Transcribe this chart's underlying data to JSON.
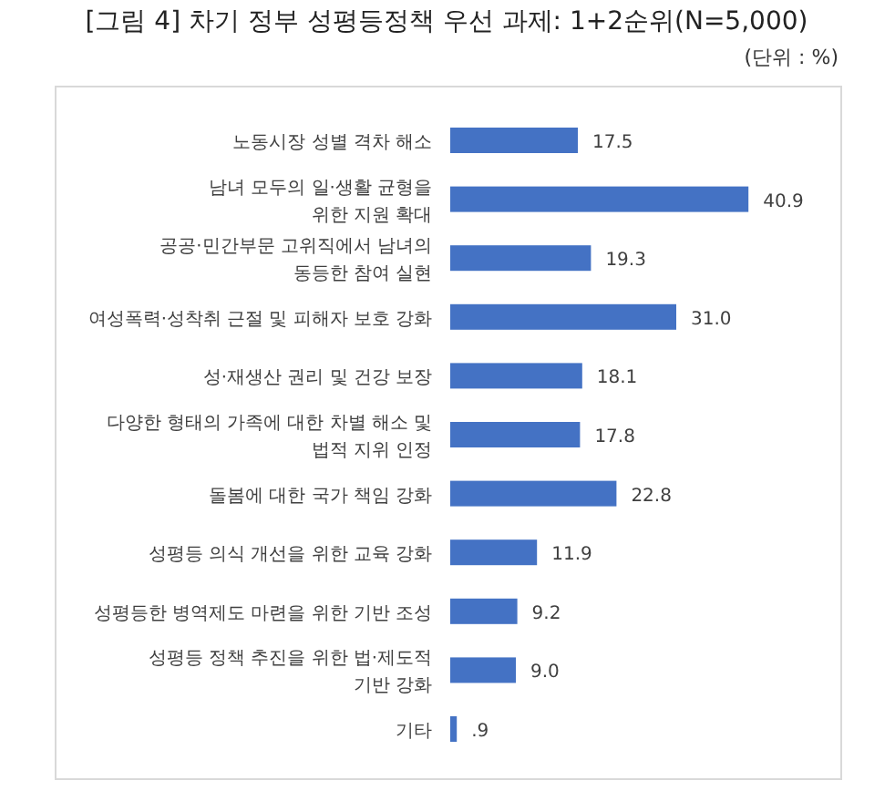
{
  "chart_data": {
    "type": "bar",
    "orientation": "horizontal",
    "title": "[그림 4] 차기 정부 성평등정책 우선 과제: 1+2순위(N=5,000)",
    "subtitle": "(단위 : %)",
    "categories": [
      "노동시장 성별 격차 해소",
      "남녀 모두의 일·생활 균형을\n위한 지원 확대",
      "공공·민간부문 고위직에서 남녀의\n동등한 참여 실현",
      "여성폭력·성착취 근절 및 피해자 보호 강화",
      "성·재생산 권리 및 건강 보장",
      "다양한 형태의 가족에 대한 차별 해소 및\n법적 지위 인정",
      "돌봄에 대한 국가 책임 강화",
      "성평등 의식 개선을 위한 교육 강화",
      "성평등한 병역제도 마련을 위한 기반 조성",
      "성평등 정책 추진을 위한 법·제도적\n기반 강화",
      "기타"
    ],
    "values": [
      17.5,
      40.9,
      19.3,
      31.0,
      18.1,
      17.8,
      22.8,
      11.9,
      9.2,
      9.0,
      0.9
    ],
    "value_labels": [
      "17.5",
      "40.9",
      "19.3",
      "31.0",
      "18.1",
      "17.8",
      "22.8",
      "11.9",
      "9.2",
      "9.0",
      ".9"
    ],
    "color": "#4472c4"
  }
}
